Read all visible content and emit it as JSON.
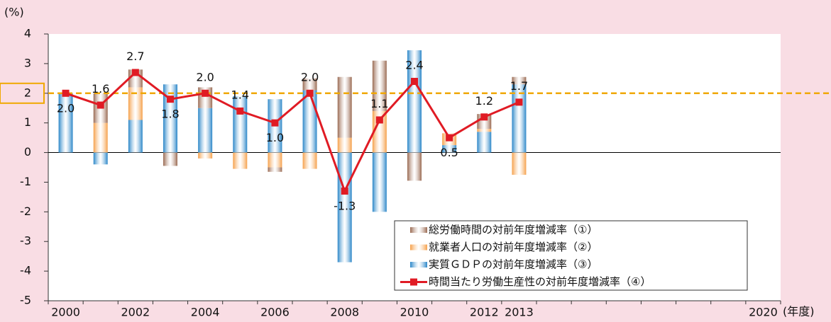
{
  "chart_data": {
    "type": "bar-line",
    "y_unit": "(%)",
    "x_unit": "(年度)",
    "categories": [
      "2000",
      null,
      "2002",
      null,
      "2004",
      null,
      "2006",
      null,
      "2008",
      null,
      "2010",
      null,
      "2012",
      "2013",
      null,
      null,
      null,
      null,
      null,
      null,
      "2020"
    ],
    "ylim": [
      -5,
      4
    ],
    "yticks": [
      -5,
      -4,
      -3,
      -2,
      -1,
      0,
      1,
      2,
      3,
      4
    ],
    "reference_line": 2,
    "reference_color": "#f0a800",
    "series": [
      {
        "name": "総労働時間の対前年度増減率（①）",
        "kind": "bar",
        "color": "#9a6a52",
        "values": [
          0,
          1.0,
          0.6,
          -0.45,
          0.7,
          0,
          -0.15,
          0.4,
          2.05,
          1.7,
          -0.95,
          0,
          0.5,
          0.25,
          null,
          null,
          null,
          null,
          null,
          null,
          null
        ]
      },
      {
        "name": "就業者人口の対前年度増減率（②）",
        "kind": "bar",
        "color": "#f5a04a",
        "values": [
          0,
          1.0,
          1.1,
          0,
          -0.2,
          -0.55,
          -0.5,
          -0.55,
          0.5,
          1.4,
          0,
          0.4,
          0.1,
          -0.75,
          null,
          null,
          null,
          null,
          null,
          null,
          null
        ]
      },
      {
        "name": "実質ＧＤＰの対前年度増減率（③）",
        "kind": "bar",
        "color": "#2a86c8",
        "values": [
          2.0,
          -0.4,
          1.1,
          2.3,
          1.5,
          1.9,
          1.8,
          2.1,
          -3.7,
          -2.0,
          3.45,
          0.25,
          0.7,
          2.3,
          null,
          null,
          null,
          null,
          null,
          null,
          null
        ]
      },
      {
        "name": "時間当たり労働生産性の対前年度増減率（④）",
        "kind": "line",
        "color": "#e01b24",
        "values": [
          2.0,
          1.6,
          2.7,
          1.8,
          2.0,
          1.4,
          1.0,
          2.0,
          -1.3,
          1.1,
          2.4,
          0.5,
          1.2,
          1.7,
          null,
          null,
          null,
          null,
          null,
          null,
          null
        ],
        "value_labels": [
          "2.0",
          "1.6",
          "2.7",
          "1.8",
          "2.0",
          "1.4",
          "1.0",
          "2.0",
          "-1.3",
          "1.1",
          "2.4",
          "0.5",
          "1.2",
          "1.7",
          null,
          null,
          null,
          null,
          null,
          null,
          null
        ]
      }
    ]
  }
}
